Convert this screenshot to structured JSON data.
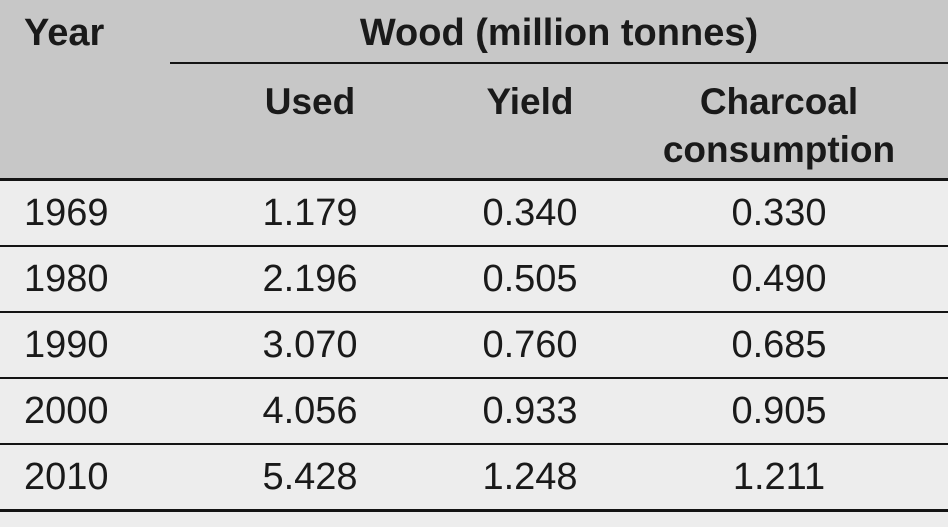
{
  "table": {
    "header": {
      "year": "Year",
      "group": "Wood (million tonnes)",
      "used": "Used",
      "yield": "Yield",
      "charcoal": "Charcoal consumption"
    },
    "rows": [
      {
        "year": "1969",
        "used": "1.179",
        "yield": "0.340",
        "charcoal": "0.330"
      },
      {
        "year": "1980",
        "used": "2.196",
        "yield": "0.505",
        "charcoal": "0.490"
      },
      {
        "year": "1990",
        "used": "3.070",
        "yield": "0.760",
        "charcoal": "0.685"
      },
      {
        "year": "2000",
        "used": "4.056",
        "yield": "0.933",
        "charcoal": "0.905"
      },
      {
        "year": "2010",
        "used": "5.428",
        "yield": "1.248",
        "charcoal": "1.211"
      }
    ]
  },
  "colors": {
    "header_bg": "#c7c7c7",
    "row_bg": "#ededed",
    "rule": "#141414",
    "text": "#1a1a1a"
  },
  "chart_data": {
    "type": "table",
    "title": "Wood (million tonnes)",
    "units": "million tonnes",
    "columns": [
      "Year",
      "Used",
      "Yield",
      "Charcoal consumption"
    ],
    "rows": [
      [
        1969,
        1.179,
        0.34,
        0.33
      ],
      [
        1980,
        2.196,
        0.505,
        0.49
      ],
      [
        1990,
        3.07,
        0.76,
        0.685
      ],
      [
        2000,
        4.056,
        0.933,
        0.905
      ],
      [
        2010,
        5.428,
        1.248,
        1.211
      ]
    ]
  }
}
